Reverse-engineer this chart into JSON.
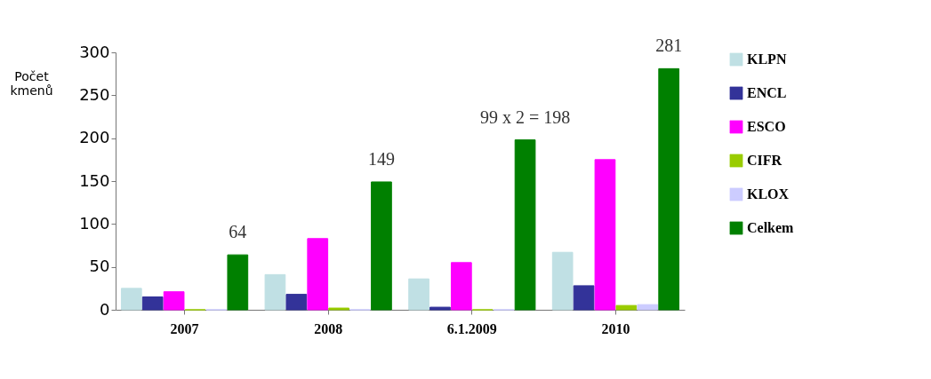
{
  "chart_data": {
    "type": "bar",
    "ylabel": "Počet kmenů",
    "categories": [
      "2007",
      "2008",
      "6.1.2009",
      "2010"
    ],
    "series": [
      {
        "name": "KLPN",
        "color": "#c0e0e4",
        "values": [
          25,
          41,
          36,
          67
        ]
      },
      {
        "name": "ENCL",
        "color": "#333399",
        "values": [
          15,
          18,
          3,
          28
        ]
      },
      {
        "name": "ESCO",
        "color": "#ff00ff",
        "values": [
          21,
          83,
          55,
          175
        ]
      },
      {
        "name": "CIFR",
        "color": "#99cc00",
        "values": [
          0,
          2,
          0,
          5
        ]
      },
      {
        "name": "KLOX",
        "color": "#ccccff",
        "values": [
          0,
          0,
          0,
          6
        ]
      },
      {
        "name": "Celkem",
        "color": "#008000",
        "values": [
          64,
          149,
          198,
          281
        ],
        "value_labels": [
          "64",
          "149",
          "99 x 2 = 198",
          "281"
        ]
      }
    ],
    "ylim": [
      0,
      300
    ],
    "yticks": [
      0,
      50,
      100,
      150,
      200,
      250,
      300
    ],
    "grid": false,
    "legend": "right"
  }
}
